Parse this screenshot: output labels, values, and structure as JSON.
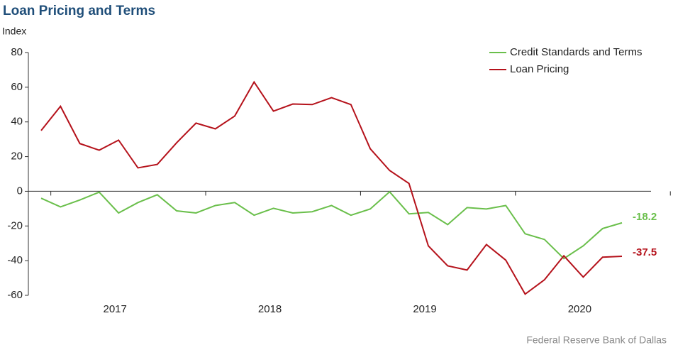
{
  "chart_data": {
    "type": "line",
    "title": "Loan Pricing and Terms",
    "y_label": "Index",
    "source": "Federal Reserve Bank of Dallas",
    "categories": [
      null,
      null,
      null,
      null,
      "2017",
      null,
      null,
      null,
      null,
      null,
      null,
      null,
      "2018",
      null,
      null,
      null,
      null,
      null,
      null,
      null,
      "2019",
      null,
      null,
      null,
      null,
      null,
      null,
      null,
      "2020",
      null,
      null
    ],
    "series": [
      {
        "name": "Credit Standards and Terms",
        "color": "#6abf4b",
        "end_label": "-18.2",
        "values": [
          -4,
          -9,
          -5,
          -0.5,
          -12.5,
          -6.5,
          -2,
          -11.3,
          -12.5,
          -8.2,
          -6.5,
          -13.8,
          -9.8,
          -12.5,
          -11.8,
          -8.2,
          -13.8,
          -10.2,
          -0.3,
          -13,
          -12.2,
          -19.2,
          -9.4,
          -10.2,
          -8.2,
          -24.5,
          -27.8,
          -38.8,
          -31.5,
          -21.5,
          -18.2
        ]
      },
      {
        "name": "Loan Pricing",
        "color": "#b5121b",
        "end_label": "-37.5",
        "values": [
          35,
          49,
          27.5,
          23.7,
          29.5,
          13.5,
          15.5,
          28,
          39.3,
          36,
          43.4,
          63,
          46.2,
          50.3,
          50,
          54,
          50,
          24.5,
          12,
          4.5,
          -31.5,
          -43,
          -45.4,
          -30.7,
          -39.7,
          -59.3,
          -51,
          -37.2,
          -49.5,
          -38,
          -37.5
        ]
      }
    ],
    "ylim": [
      -60,
      80
    ],
    "yticks": [
      -60,
      -40,
      -20,
      0,
      20,
      40,
      60,
      80
    ],
    "legend": "top-right"
  }
}
